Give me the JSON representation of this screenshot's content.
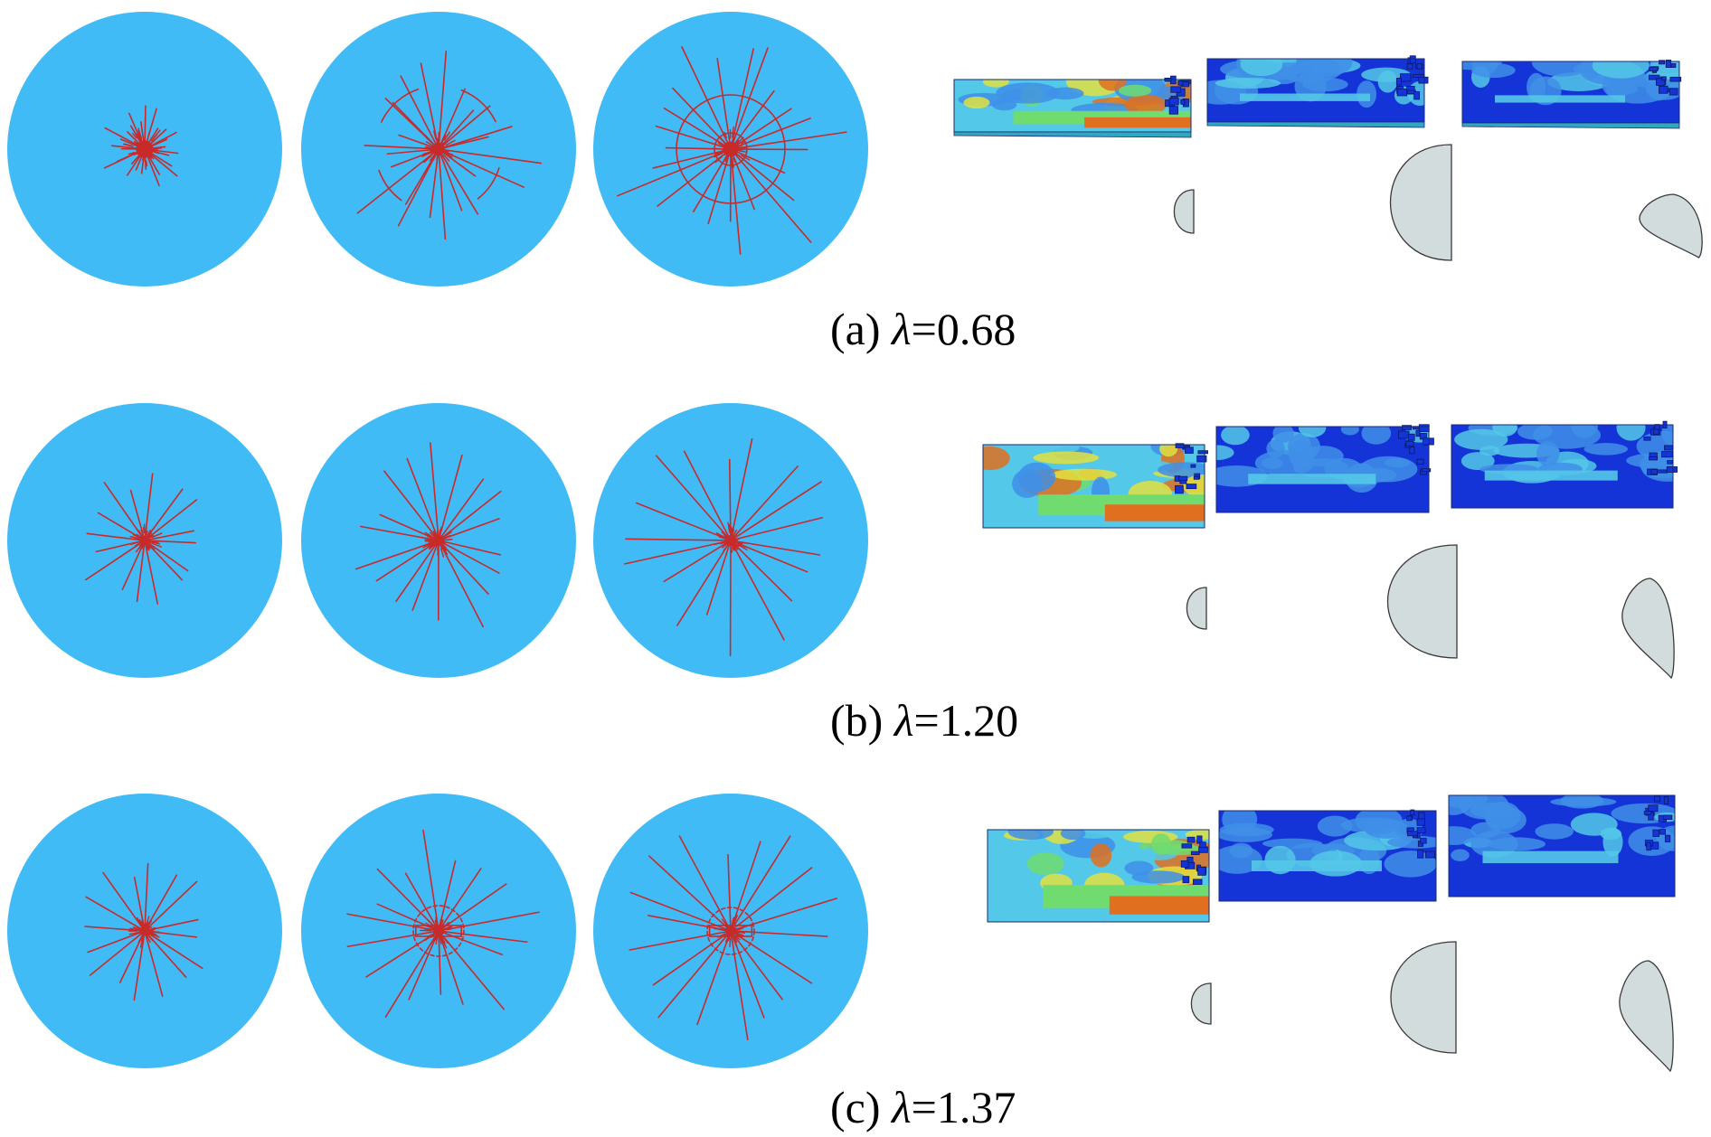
{
  "colors": {
    "disk": "#41bbf6",
    "crack": "#c82a2a",
    "profile_fill": "#d3dcdc",
    "profile_stroke": "#3a3a3a",
    "contour_dark": "#1434d8",
    "contour_mid": "#3f8fe8",
    "contour_light": "#54c8e8",
    "contour_green": "#70dc70",
    "contour_yellow": "#e0e040",
    "contour_orange": "#e07020",
    "contour_red": "#c0401a"
  },
  "rows": [
    {
      "id": "a",
      "label": "(a) ",
      "symbol": "λ",
      "value": "=0.68",
      "disks": [
        "dense-core",
        "partial-ring",
        "full-ring"
      ]
    },
    {
      "id": "b",
      "label": "(b) ",
      "symbol": "λ",
      "value": "=1.20",
      "disks": [
        "radial-short",
        "radial-medium",
        "radial-long"
      ]
    },
    {
      "id": "c",
      "label": "(c) ",
      "symbol": "λ",
      "value": "=1.37",
      "disks": [
        "radial-short",
        "radial-web",
        "radial-web-long"
      ]
    }
  ]
}
